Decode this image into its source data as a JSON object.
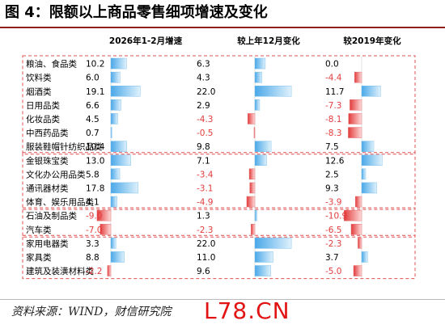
{
  "title": "图 4：限额以上商品零售细项增速及变化",
  "source": "资料来源：WIND，财信研究院",
  "watermark": "L78.CN",
  "colors": {
    "positive": "#4aa8e8",
    "negative": "#e23c3c",
    "group_border": "#e05050"
  },
  "chart_data": {
    "type": "bar",
    "categories": [
      "粮油、食品类",
      "饮料类",
      "烟酒类",
      "日用品类",
      "化妆品类",
      "中西药品类",
      "服装鞋帽针纺织品类",
      "金银珠宝类",
      "文化办公用品类",
      "通讯器材类",
      "体育、娱乐用品类",
      "石油及制品类",
      "汽车类",
      "家用电器类",
      "家具类",
      "建筑及装潢材料类"
    ],
    "groups": [
      [
        0,
        6
      ],
      [
        7,
        10
      ],
      [
        11,
        12
      ],
      [
        13,
        15
      ]
    ],
    "series": [
      {
        "name": "2026年1-2月增速",
        "values": [
          "10.2",
          "6.0",
          "19.1",
          "6.6",
          "4.5",
          "0.7",
          "10.4",
          "13.0",
          "5.8",
          "17.8",
          "4.1",
          "-9.0",
          "-7.0",
          "3.3",
          "8.8",
          "-2.2"
        ]
      },
      {
        "name": "较上年12月变化",
        "values": [
          "6.3",
          "4.3",
          "22.0",
          "2.9",
          "-4.3",
          "-0.5",
          "9.8",
          "7.1",
          "-3.4",
          "-3.1",
          "-4.9",
          "1.3",
          "-2.3",
          "22.0",
          "11.0",
          "9.6"
        ]
      },
      {
        "name": "较2019年变化",
        "values": [
          "0.0",
          "-4.4",
          "11.7",
          "-7.3",
          "-8.1",
          "-8.3",
          "7.5",
          "12.6",
          "2.5",
          "9.3",
          "-3.9",
          "-10.9",
          "-6.5",
          "-2.3",
          "3.7",
          "-5.0"
        ]
      }
    ]
  }
}
